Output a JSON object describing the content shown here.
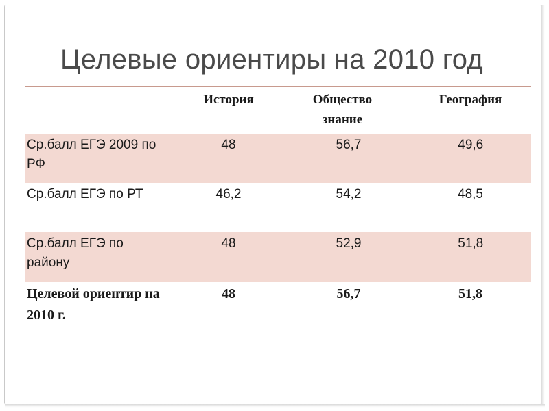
{
  "slide": {
    "title": "Целевые ориентиры на 2010 год"
  },
  "table": {
    "headers": [
      "",
      "История",
      "Общество знание",
      "География"
    ],
    "rows": [
      {
        "label": "Ср.балл ЕГЭ 2009  по  РФ",
        "values": [
          "48",
          "56,7",
          "49,6"
        ],
        "shaded": true,
        "bold": false
      },
      {
        "label": "Ср.балл ЕГЭ по РТ",
        "values": [
          "46,2",
          "54,2",
          "48,5"
        ],
        "shaded": false,
        "bold": false
      },
      {
        "label": "Ср.балл ЕГЭ по району",
        "values": [
          "48",
          "52,9",
          "51,8"
        ],
        "shaded": true,
        "bold": false
      },
      {
        "label": "Целевой ориентир на 2010 г.",
        "values": [
          "48",
          "56,7",
          "51,8"
        ],
        "shaded": false,
        "bold": true
      }
    ]
  },
  "colors": {
    "title": "#4a4a4a",
    "band": "#f3d9d2",
    "rule": "#c89a8e"
  }
}
